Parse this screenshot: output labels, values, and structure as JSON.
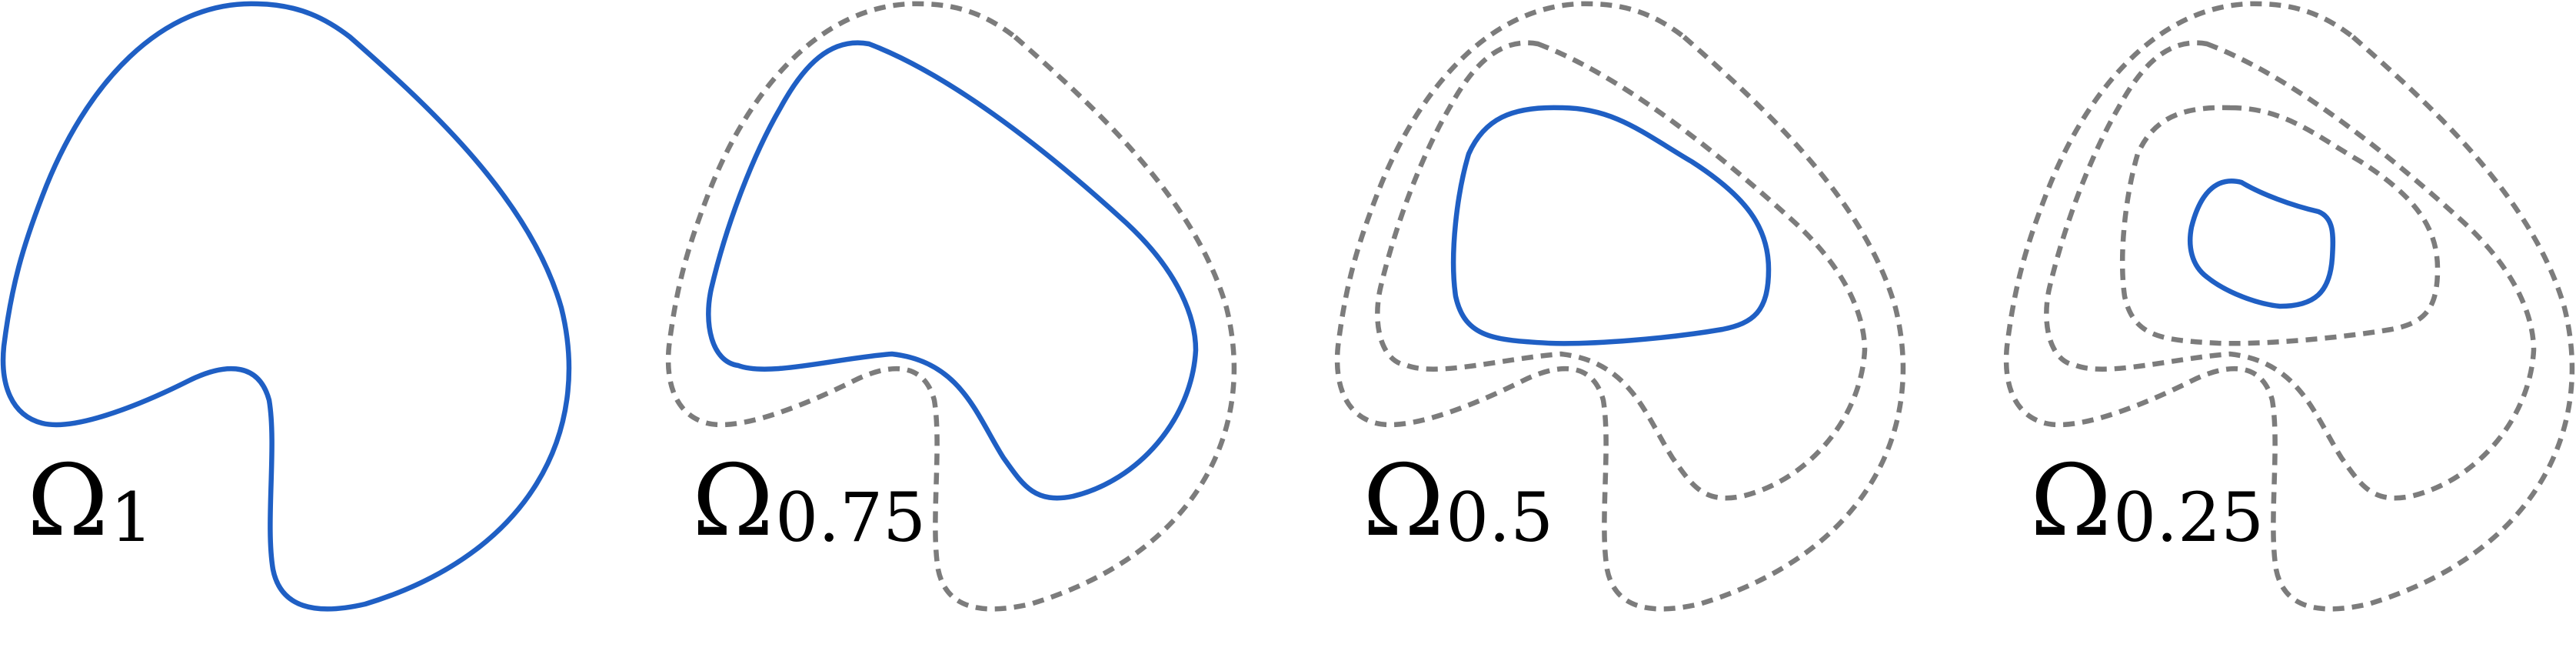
{
  "panels": [
    {
      "symbol": "Ω",
      "subscript": "1",
      "current_color": "#1f5fc4",
      "previous_color": "#7c7c7c"
    },
    {
      "symbol": "Ω",
      "subscript": "0.75",
      "current_color": "#1f5fc4",
      "previous_color": "#7c7c7c"
    },
    {
      "symbol": "Ω",
      "subscript": "0.5",
      "current_color": "#1f5fc4",
      "previous_color": "#7c7c7c"
    },
    {
      "symbol": "Ω",
      "subscript": "0.25",
      "current_color": "#1f5fc4",
      "previous_color": "#7c7c7c"
    }
  ]
}
